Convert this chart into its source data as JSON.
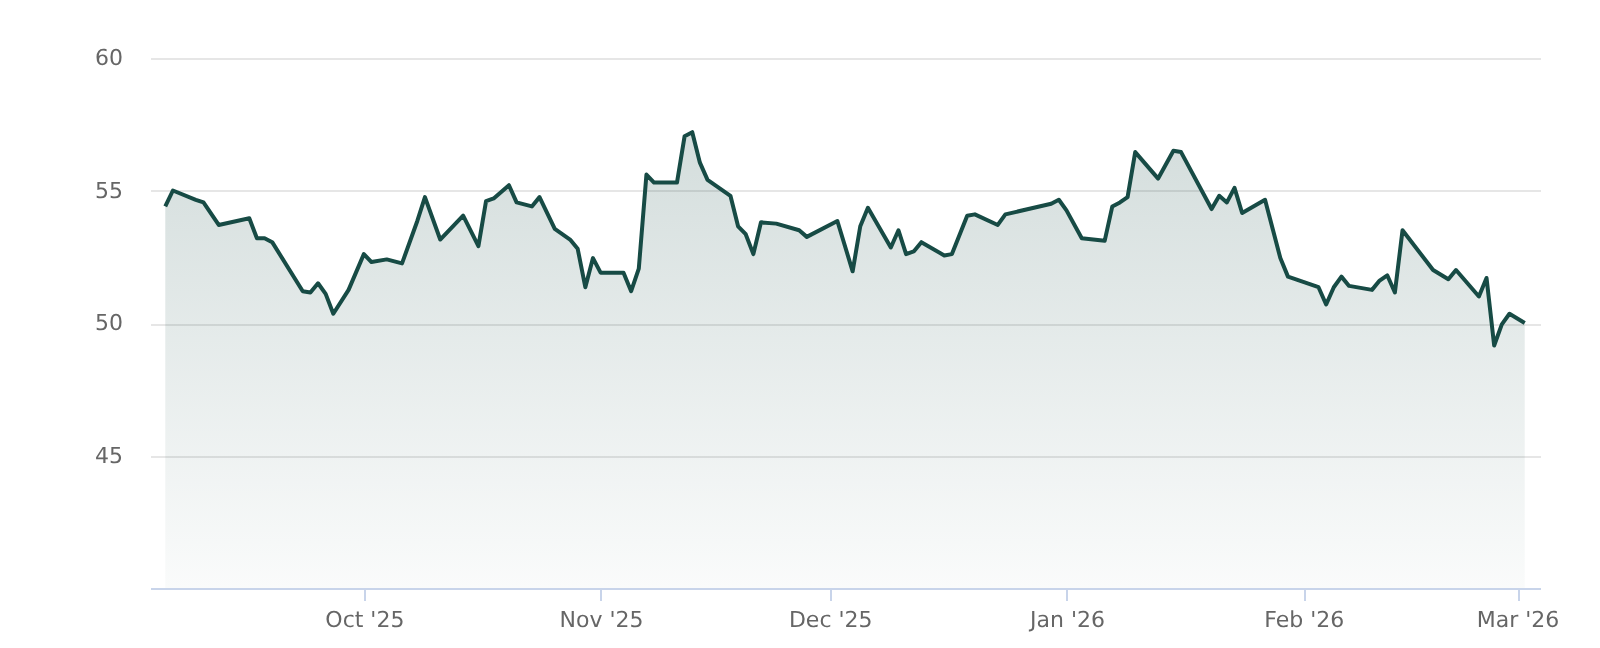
{
  "chart_data": {
    "type": "area",
    "x": [
      "2025-09-05",
      "2025-09-06",
      "2025-09-09",
      "2025-09-10",
      "2025-09-12",
      "2025-09-16",
      "2025-09-17",
      "2025-09-18",
      "2025-09-19",
      "2025-09-23",
      "2025-09-24",
      "2025-09-25",
      "2025-09-26",
      "2025-09-27",
      "2025-09-29",
      "2025-10-01",
      "2025-10-02",
      "2025-10-04",
      "2025-10-06",
      "2025-10-08",
      "2025-10-09",
      "2025-10-11",
      "2025-10-14",
      "2025-10-16",
      "2025-10-17",
      "2025-10-18",
      "2025-10-20",
      "2025-10-21",
      "2025-10-23",
      "2025-10-24",
      "2025-10-26",
      "2025-10-28",
      "2025-10-29",
      "2025-10-30",
      "2025-10-31",
      "2025-11-01",
      "2025-11-04",
      "2025-11-05",
      "2025-11-06",
      "2025-11-07",
      "2025-11-08",
      "2025-11-11",
      "2025-11-12",
      "2025-11-13",
      "2025-11-14",
      "2025-11-15",
      "2025-11-18",
      "2025-11-19",
      "2025-11-20",
      "2025-11-21",
      "2025-11-22",
      "2025-11-24",
      "2025-11-27",
      "2025-11-28",
      "2025-12-02",
      "2025-12-04",
      "2025-12-05",
      "2025-12-06",
      "2025-12-09",
      "2025-12-10",
      "2025-12-11",
      "2025-12-12",
      "2025-12-13",
      "2025-12-16",
      "2025-12-17",
      "2025-12-19",
      "2025-12-20",
      "2025-12-23",
      "2025-12-24",
      "2025-12-30",
      "2025-12-31",
      "2026-01-01",
      "2026-01-03",
      "2026-01-06",
      "2026-01-07",
      "2026-01-08",
      "2026-01-09",
      "2026-01-10",
      "2026-01-13",
      "2026-01-15",
      "2026-01-16",
      "2026-01-20",
      "2026-01-21",
      "2026-01-22",
      "2026-01-23",
      "2026-01-24",
      "2026-01-27",
      "2026-01-29",
      "2026-01-30",
      "2026-02-03",
      "2026-02-04",
      "2026-02-05",
      "2026-02-06",
      "2026-02-07",
      "2026-02-10",
      "2026-02-11",
      "2026-02-12",
      "2026-02-13",
      "2026-02-14",
      "2026-02-18",
      "2026-02-20",
      "2026-02-21",
      "2026-02-24",
      "2026-02-25",
      "2026-02-26",
      "2026-02-27",
      "2026-02-28",
      "2026-03-02"
    ],
    "series": [
      {
        "color": "#174b45",
        "values": [
          54.4,
          55.0,
          54.65,
          54.55,
          53.7,
          53.95,
          53.2,
          53.2,
          53.05,
          51.2,
          51.15,
          51.5,
          51.1,
          50.35,
          51.25,
          52.6,
          52.3,
          52.4,
          52.25,
          53.85,
          54.75,
          53.15,
          54.05,
          52.9,
          54.6,
          54.7,
          55.2,
          54.55,
          54.4,
          54.75,
          53.55,
          53.15,
          52.8,
          51.35,
          52.45,
          51.9,
          51.9,
          51.2,
          52.05,
          55.6,
          55.3,
          55.3,
          57.05,
          57.2,
          56.05,
          55.4,
          54.8,
          53.65,
          53.35,
          52.6,
          53.8,
          53.75,
          53.5,
          53.25,
          53.85,
          51.95,
          53.65,
          54.35,
          52.85,
          53.5,
          52.6,
          52.7,
          53.05,
          52.55,
          52.6,
          54.05,
          54.1,
          53.7,
          54.1,
          54.5,
          54.65,
          54.25,
          53.2,
          53.1,
          54.4,
          54.55,
          54.75,
          56.45,
          55.45,
          56.5,
          56.45,
          54.3,
          54.8,
          54.55,
          55.1,
          54.15,
          54.65,
          52.45,
          51.75,
          51.35,
          50.7,
          51.35,
          51.75,
          51.4,
          51.25,
          51.6,
          51.8,
          51.15,
          53.5,
          52.0,
          51.65,
          52.0,
          51.0,
          51.7,
          49.15,
          49.95,
          50.35,
          50.0
        ]
      }
    ],
    "xlim": [
      "2025-09-03",
      "2026-03-04"
    ],
    "xticks": [
      {
        "value": "2025-10-01",
        "label": "Oct '25"
      },
      {
        "value": "2025-11-01",
        "label": "Nov '25"
      },
      {
        "value": "2025-12-01",
        "label": "Dec '25"
      },
      {
        "value": "2026-01-01",
        "label": "Jan '26"
      },
      {
        "value": "2026-02-01",
        "label": "Feb '26"
      },
      {
        "value": "2026-03-01",
        "label": "Mar '26"
      }
    ],
    "ylim": [
      40,
      60
    ],
    "yticks": [
      45,
      50,
      55,
      60
    ],
    "grid": "y"
  }
}
